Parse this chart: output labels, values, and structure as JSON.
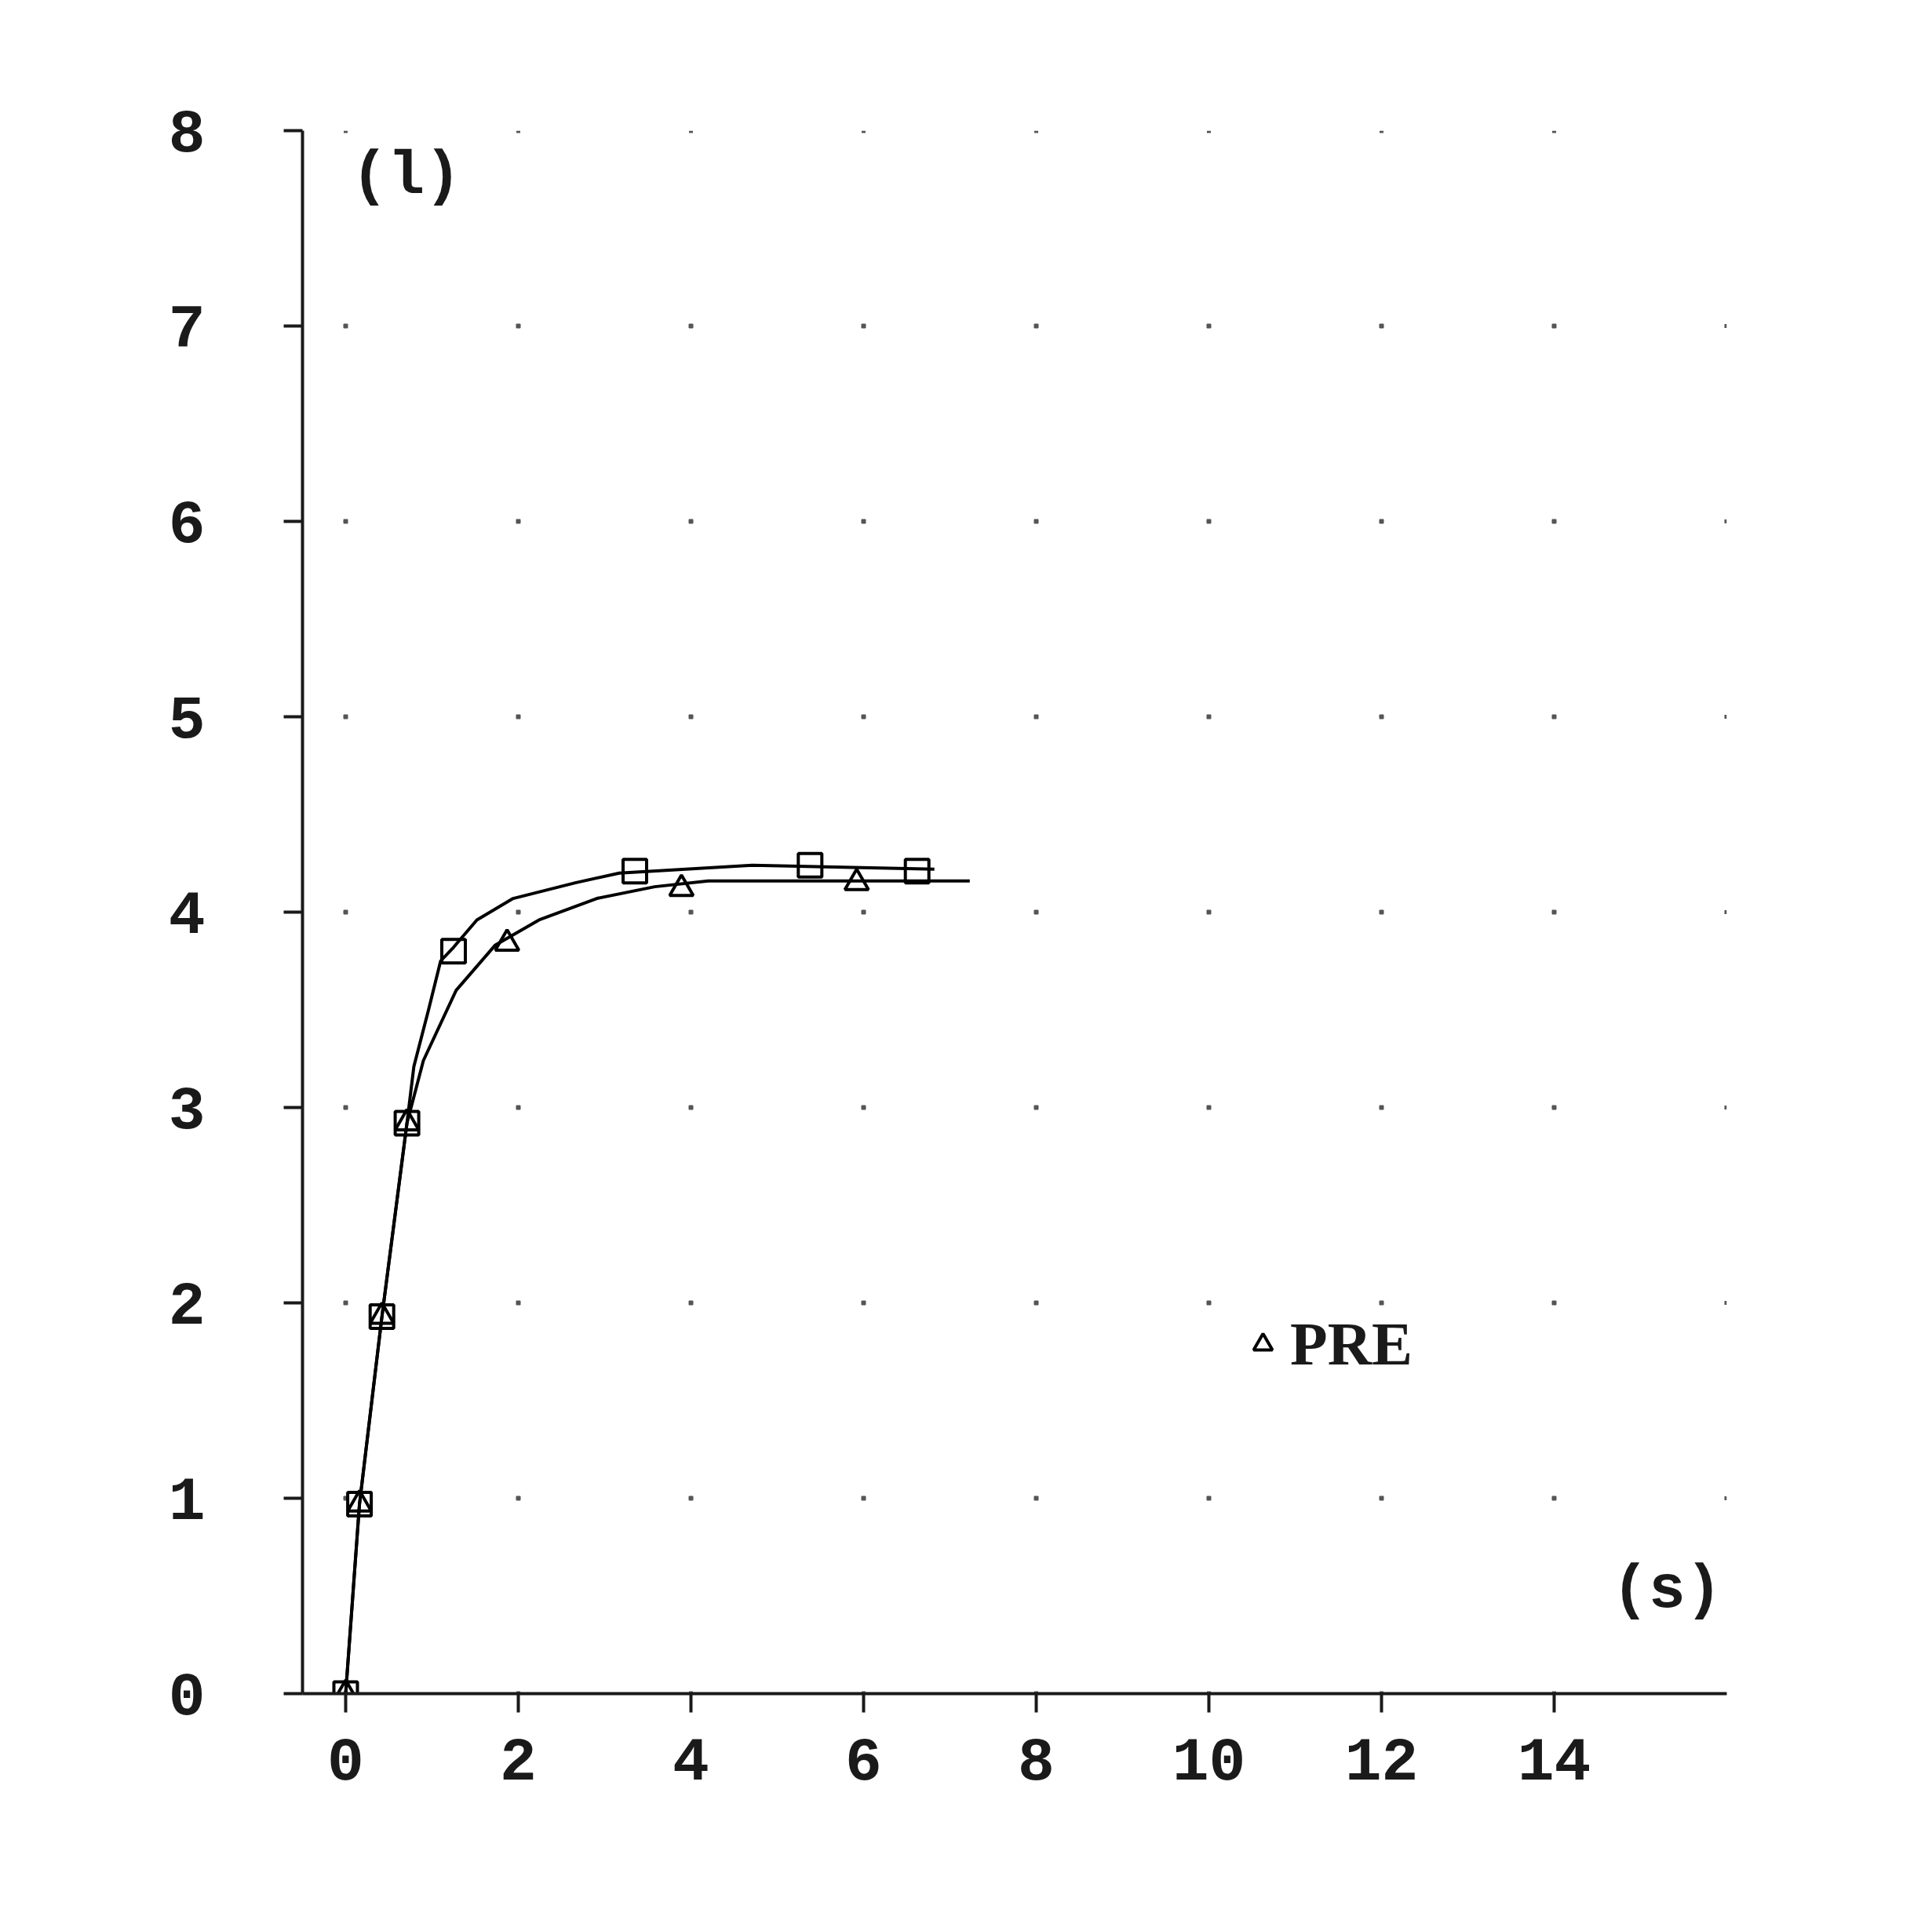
{
  "chart_data": {
    "type": "line",
    "xlabel": "(s)",
    "ylabel": "(l)",
    "xlim": [
      -0.5,
      16
    ],
    "ylim": [
      0,
      8
    ],
    "xticks": [
      0,
      2,
      4,
      6,
      8,
      10,
      12,
      14
    ],
    "yticks": [
      0,
      1,
      2,
      3,
      4,
      5,
      6,
      7,
      8
    ],
    "grid": true,
    "legend": "bottom right",
    "line_style": "solid",
    "series": [
      {
        "color": "#000000",
        "x": [
          0,
          0.16,
          0.42,
          0.71,
          0.79,
          0.96,
          1.1,
          1.25,
          1.52,
          1.94,
          2.66,
          3.17,
          4.71,
          6.82
        ],
        "values": [
          0,
          0.97,
          1.93,
          2.92,
          3.21,
          3.5,
          3.75,
          3.82,
          3.96,
          4.07,
          4.15,
          4.2,
          4.24,
          4.22
        ]
      },
      {
        "color": "#000000",
        "x": [
          0,
          0.16,
          0.42,
          0.71,
          0.9,
          1.28,
          1.73,
          2.24,
          2.91,
          3.58,
          4.2,
          7.23
        ],
        "values": [
          0,
          0.97,
          1.93,
          2.92,
          3.24,
          3.6,
          3.83,
          3.96,
          4.07,
          4.13,
          4.16,
          4.16
        ]
      },
      {
        "type": "scatter",
        "marker": "square",
        "color": "#000000",
        "x": [
          0,
          0.16,
          0.42,
          0.71,
          1.25,
          3.35,
          5.38,
          6.62
        ],
        "values": [
          0,
          0.97,
          1.93,
          2.92,
          3.8,
          4.21,
          4.24,
          4.21
        ]
      },
      {
        "type": "scatter",
        "name": "PRE",
        "marker": "triangle",
        "color": "#000000",
        "x": [
          0,
          0.16,
          0.42,
          0.71,
          1.87,
          3.89,
          5.92
        ],
        "values": [
          0,
          0.97,
          1.93,
          2.92,
          3.84,
          4.12,
          4.15
        ]
      }
    ]
  }
}
